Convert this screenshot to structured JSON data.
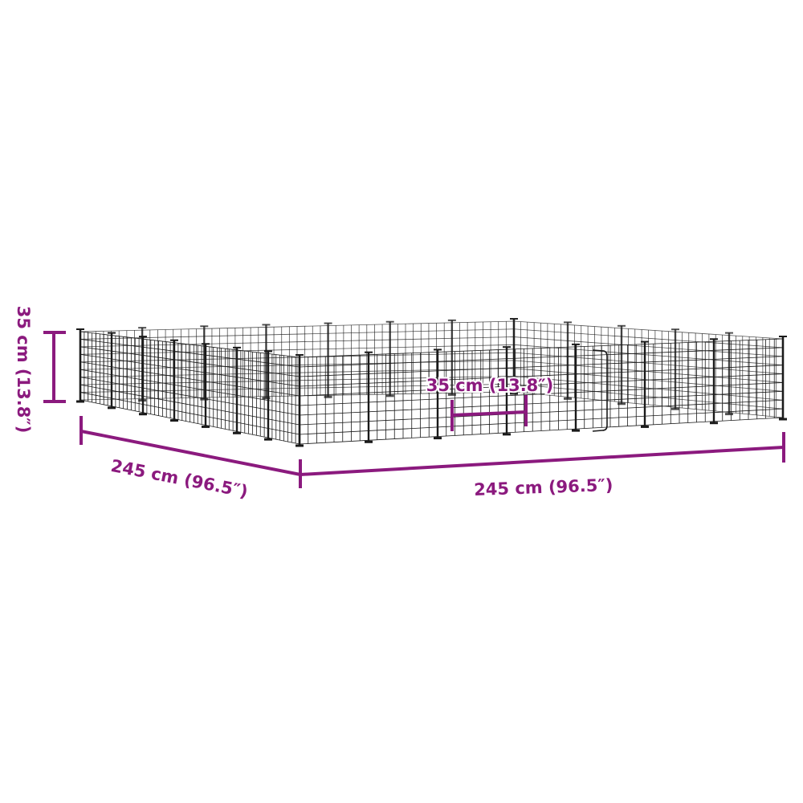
{
  "colors": {
    "dimension": "#8b1a7e",
    "pen_wire": "#1a1a1a",
    "background": "#ffffff"
  },
  "dimensions": {
    "height": "35 cm (13.8″)",
    "depth": "245 cm (96.5″)",
    "width": "245 cm (96.5″)",
    "panel_width": "35 cm (13.8″)"
  }
}
